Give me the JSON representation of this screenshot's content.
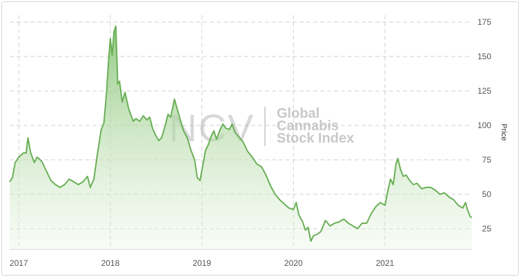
{
  "chart_data": {
    "type": "area",
    "title": "",
    "xlabel": "",
    "ylabel": "Price",
    "y_axis_side": "right",
    "ylim": [
      10,
      180
    ],
    "yticks": [
      25,
      50,
      75,
      100,
      125,
      150,
      175
    ],
    "xticks": [
      {
        "label": "2017",
        "x": 2017.0
      },
      {
        "label": "2018",
        "x": 2018.0
      },
      {
        "label": "2019",
        "x": 2019.0
      },
      {
        "label": "2020",
        "x": 2020.0
      },
      {
        "label": "2021",
        "x": 2021.0
      }
    ],
    "xlim": [
      2016.9,
      2021.95
    ],
    "grid": true,
    "legend": "none",
    "line_color": "#6aaf57",
    "fill_color": "#8fcb7c",
    "watermark": {
      "logo": "NCV",
      "lines": [
        "Global",
        "Cannabis",
        "Stock Index"
      ]
    },
    "series": [
      {
        "name": "",
        "points": [
          [
            2016.9,
            59
          ],
          [
            2016.93,
            62
          ],
          [
            2016.96,
            73
          ],
          [
            2017.0,
            77
          ],
          [
            2017.05,
            80
          ],
          [
            2017.08,
            80
          ],
          [
            2017.1,
            91
          ],
          [
            2017.13,
            80
          ],
          [
            2017.17,
            73
          ],
          [
            2017.2,
            77
          ],
          [
            2017.25,
            74
          ],
          [
            2017.3,
            67
          ],
          [
            2017.35,
            60
          ],
          [
            2017.4,
            57
          ],
          [
            2017.45,
            55
          ],
          [
            2017.5,
            57
          ],
          [
            2017.55,
            61
          ],
          [
            2017.6,
            59
          ],
          [
            2017.65,
            57
          ],
          [
            2017.7,
            59
          ],
          [
            2017.75,
            63
          ],
          [
            2017.78,
            55
          ],
          [
            2017.82,
            61
          ],
          [
            2017.86,
            80
          ],
          [
            2017.9,
            97
          ],
          [
            2017.93,
            102
          ],
          [
            2017.96,
            125
          ],
          [
            2017.98,
            147
          ],
          [
            2018.0,
            163
          ],
          [
            2018.02,
            151
          ],
          [
            2018.04,
            168
          ],
          [
            2018.06,
            172
          ],
          [
            2018.08,
            130
          ],
          [
            2018.1,
            132
          ],
          [
            2018.13,
            117
          ],
          [
            2018.16,
            124
          ],
          [
            2018.2,
            112
          ],
          [
            2018.25,
            103
          ],
          [
            2018.28,
            105
          ],
          [
            2018.32,
            103
          ],
          [
            2018.36,
            107
          ],
          [
            2018.4,
            104
          ],
          [
            2018.43,
            106
          ],
          [
            2018.46,
            98
          ],
          [
            2018.5,
            92
          ],
          [
            2018.53,
            89
          ],
          [
            2018.56,
            91
          ],
          [
            2018.6,
            100
          ],
          [
            2018.63,
            108
          ],
          [
            2018.66,
            106
          ],
          [
            2018.7,
            119
          ],
          [
            2018.73,
            112
          ],
          [
            2018.76,
            105
          ],
          [
            2018.8,
            96
          ],
          [
            2018.84,
            91
          ],
          [
            2018.88,
            82
          ],
          [
            2018.92,
            75
          ],
          [
            2018.95,
            62
          ],
          [
            2018.98,
            60
          ],
          [
            2019.01,
            71
          ],
          [
            2019.04,
            82
          ],
          [
            2019.07,
            86
          ],
          [
            2019.1,
            92
          ],
          [
            2019.13,
            96
          ],
          [
            2019.16,
            90
          ],
          [
            2019.2,
            97
          ],
          [
            2019.23,
            101
          ],
          [
            2019.26,
            98
          ],
          [
            2019.3,
            97
          ],
          [
            2019.33,
            101
          ],
          [
            2019.36,
            95
          ],
          [
            2019.4,
            92
          ],
          [
            2019.45,
            88
          ],
          [
            2019.5,
            81
          ],
          [
            2019.55,
            77
          ],
          [
            2019.6,
            72
          ],
          [
            2019.65,
            70
          ],
          [
            2019.7,
            64
          ],
          [
            2019.75,
            56
          ],
          [
            2019.8,
            50
          ],
          [
            2019.85,
            46
          ],
          [
            2019.9,
            43
          ],
          [
            2019.95,
            40
          ],
          [
            2020.0,
            39
          ],
          [
            2020.03,
            44
          ],
          [
            2020.06,
            35
          ],
          [
            2020.1,
            30
          ],
          [
            2020.13,
            24
          ],
          [
            2020.16,
            26
          ],
          [
            2020.19,
            16
          ],
          [
            2020.22,
            20
          ],
          [
            2020.26,
            21
          ],
          [
            2020.3,
            23
          ],
          [
            2020.35,
            31
          ],
          [
            2020.4,
            27
          ],
          [
            2020.45,
            29
          ],
          [
            2020.5,
            30
          ],
          [
            2020.55,
            32
          ],
          [
            2020.6,
            29
          ],
          [
            2020.65,
            27
          ],
          [
            2020.7,
            25
          ],
          [
            2020.75,
            29
          ],
          [
            2020.8,
            29
          ],
          [
            2020.85,
            36
          ],
          [
            2020.9,
            41
          ],
          [
            2020.95,
            44
          ],
          [
            2021.0,
            42
          ],
          [
            2021.03,
            52
          ],
          [
            2021.06,
            61
          ],
          [
            2021.09,
            57
          ],
          [
            2021.12,
            72
          ],
          [
            2021.14,
            76
          ],
          [
            2021.17,
            68
          ],
          [
            2021.2,
            63
          ],
          [
            2021.23,
            64
          ],
          [
            2021.27,
            60
          ],
          [
            2021.31,
            57
          ],
          [
            2021.35,
            58
          ],
          [
            2021.4,
            54
          ],
          [
            2021.45,
            55
          ],
          [
            2021.5,
            55
          ],
          [
            2021.55,
            53
          ],
          [
            2021.6,
            50
          ],
          [
            2021.65,
            51
          ],
          [
            2021.7,
            48
          ],
          [
            2021.75,
            46
          ],
          [
            2021.8,
            42
          ],
          [
            2021.85,
            40
          ],
          [
            2021.88,
            44
          ],
          [
            2021.9,
            39
          ],
          [
            2021.93,
            34
          ],
          [
            2021.95,
            33
          ]
        ]
      }
    ]
  }
}
